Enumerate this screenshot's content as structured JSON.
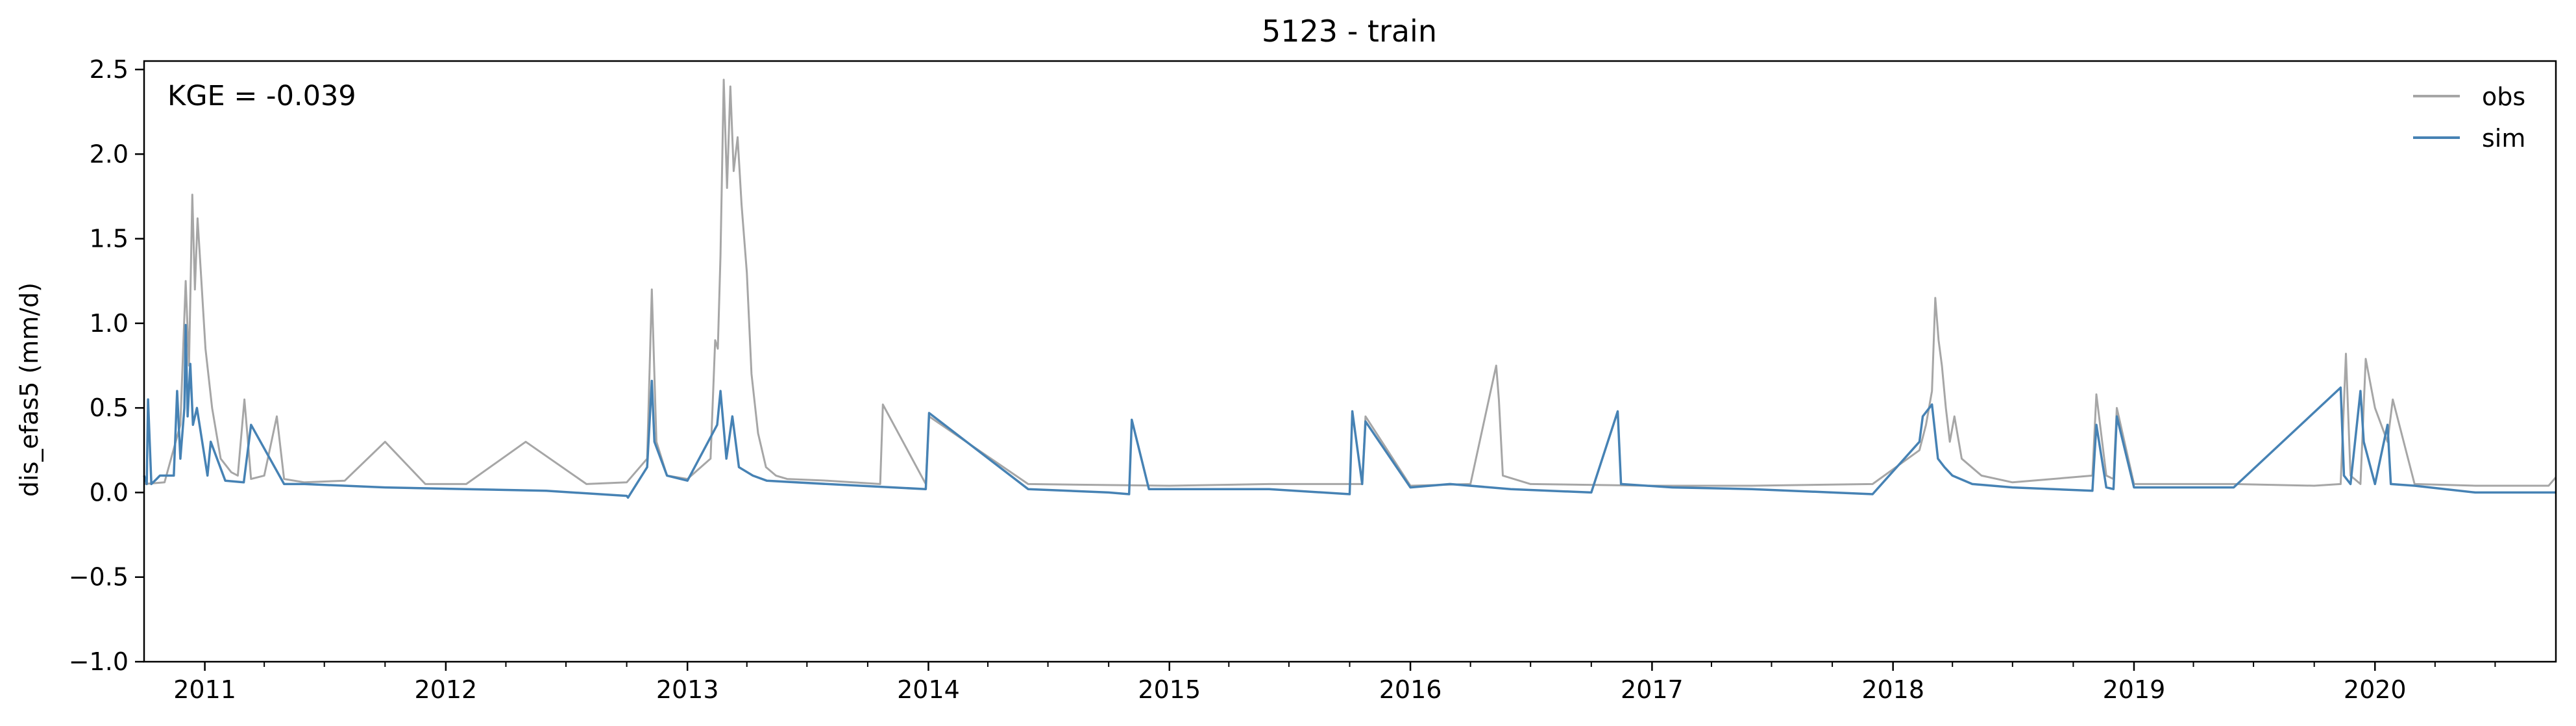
{
  "chart_data": {
    "type": "line",
    "title": "5123 - train",
    "xlabel": "",
    "ylabel": "dis_efas5 (mm/d)",
    "annotation": "KGE = -0.039",
    "xlim": [
      "2010-10-01",
      "2020-10-01"
    ],
    "ylim": [
      -1.0,
      2.55
    ],
    "yticks": [
      -1.0,
      -0.5,
      0.0,
      0.5,
      1.0,
      1.5,
      2.0,
      2.5
    ],
    "ytick_labels": [
      "−1.0",
      "−0.5",
      "0.0",
      "0.5",
      "1.0",
      "1.5",
      "2.0",
      "2.5"
    ],
    "xticks": [
      "2011-01-01",
      "2012-01-01",
      "2013-01-01",
      "2014-01-01",
      "2015-01-01",
      "2016-01-01",
      "2017-01-01",
      "2018-01-01",
      "2019-01-01",
      "2020-01-01"
    ],
    "xtick_labels": [
      "2011",
      "2012",
      "2013",
      "2014",
      "2015",
      "2016",
      "2017",
      "2018",
      "2019",
      "2020"
    ],
    "legend_position": "top-right",
    "grid": false,
    "series": [
      {
        "name": "obs",
        "color": "#a6a6a6",
        "x": [
          "2010-10-01",
          "2010-11-01",
          "2010-11-25",
          "2010-12-03",
          "2010-12-08",
          "2010-12-13",
          "2010-12-17",
          "2010-12-21",
          "2010-12-26",
          "2011-01-02",
          "2011-01-12",
          "2011-01-25",
          "2011-02-10",
          "2011-02-20",
          "2011-03-02",
          "2011-03-12",
          "2011-04-01",
          "2011-04-20",
          "2011-05-01",
          "2011-06-01",
          "2011-08-01",
          "2011-10-01",
          "2011-12-01",
          "2012-02-01",
          "2012-05-01",
          "2012-08-01",
          "2012-10-01",
          "2012-11-01",
          "2012-11-08",
          "2012-11-15",
          "2012-12-01",
          "2013-01-01",
          "2013-02-05",
          "2013-02-12",
          "2013-02-16",
          "2013-02-20",
          "2013-02-25",
          "2013-03-02",
          "2013-03-07",
          "2013-03-12",
          "2013-03-18",
          "2013-03-24",
          "2013-04-01",
          "2013-04-08",
          "2013-04-18",
          "2013-04-30",
          "2013-05-15",
          "2013-06-01",
          "2013-08-01",
          "2013-10-20",
          "2013-10-24",
          "2013-12-28",
          "2014-01-02",
          "2014-06-01",
          "2015-01-01",
          "2015-06-01",
          "2015-10-20",
          "2015-10-25",
          "2016-01-01",
          "2016-04-01",
          "2016-05-10",
          "2016-05-14",
          "2016-05-20",
          "2016-07-01",
          "2017-01-01",
          "2017-06-01",
          "2017-12-01",
          "2018-02-10",
          "2018-02-20",
          "2018-03-01",
          "2018-03-06",
          "2018-03-11",
          "2018-03-16",
          "2018-03-22",
          "2018-03-28",
          "2018-04-04",
          "2018-04-15",
          "2018-05-15",
          "2018-07-01",
          "2018-10-30",
          "2018-11-05",
          "2018-11-20",
          "2018-12-01",
          "2018-12-06",
          "2019-01-01",
          "2019-06-01",
          "2019-10-01",
          "2019-11-10",
          "2019-11-18",
          "2019-11-25",
          "2019-12-10",
          "2019-12-18",
          "2020-01-01",
          "2020-01-20",
          "2020-01-28",
          "2020-03-01",
          "2020-06-01",
          "2020-09-20",
          "2020-10-01"
        ],
        "y": [
          0.05,
          0.06,
          0.4,
          1.25,
          0.75,
          1.76,
          1.2,
          1.62,
          1.3,
          0.85,
          0.5,
          0.2,
          0.12,
          0.1,
          0.55,
          0.08,
          0.1,
          0.45,
          0.08,
          0.06,
          0.07,
          0.3,
          0.05,
          0.05,
          0.3,
          0.05,
          0.06,
          0.2,
          1.2,
          0.3,
          0.1,
          0.08,
          0.2,
          0.9,
          0.85,
          1.4,
          2.44,
          1.8,
          2.4,
          1.9,
          2.1,
          1.7,
          1.3,
          0.7,
          0.35,
          0.15,
          0.1,
          0.08,
          0.07,
          0.05,
          0.52,
          0.05,
          0.45,
          0.05,
          0.04,
          0.05,
          0.05,
          0.45,
          0.04,
          0.05,
          0.75,
          0.55,
          0.1,
          0.05,
          0.04,
          0.04,
          0.05,
          0.25,
          0.4,
          0.6,
          1.15,
          0.9,
          0.75,
          0.5,
          0.3,
          0.45,
          0.2,
          0.1,
          0.06,
          0.1,
          0.58,
          0.1,
          0.08,
          0.5,
          0.05,
          0.05,
          0.04,
          0.05,
          0.82,
          0.1,
          0.05,
          0.79,
          0.5,
          0.3,
          0.55,
          0.05,
          0.04,
          0.04,
          0.09
        ]
      },
      {
        "name": "sim",
        "color": "#4682b4",
        "x": [
          "2010-10-01",
          "2010-10-05",
          "2010-10-07",
          "2010-10-12",
          "2010-10-20",
          "2010-10-25",
          "2010-11-15",
          "2010-11-20",
          "2010-11-25",
          "2010-12-01",
          "2010-12-03",
          "2010-12-06",
          "2010-12-10",
          "2010-12-14",
          "2010-12-20",
          "2011-01-05",
          "2011-01-10",
          "2011-02-01",
          "2011-03-01",
          "2011-03-12",
          "2011-05-01",
          "2011-06-01",
          "2011-10-01",
          "2012-02-01",
          "2012-06-01",
          "2012-10-01",
          "2012-10-03",
          "2012-11-01",
          "2012-11-08",
          "2012-11-12",
          "2012-12-01",
          "2013-01-01",
          "2013-02-15",
          "2013-02-20",
          "2013-03-01",
          "2013-03-10",
          "2013-03-20",
          "2013-04-10",
          "2013-05-01",
          "2013-08-01",
          "2013-12-28",
          "2014-01-02",
          "2014-06-01",
          "2014-10-01",
          "2014-11-01",
          "2014-11-05",
          "2014-12-01",
          "2015-06-01",
          "2015-10-01",
          "2015-10-05",
          "2015-10-20",
          "2015-10-25",
          "2016-01-01",
          "2016-03-01",
          "2016-06-01",
          "2016-10-01",
          "2016-11-10",
          "2016-11-15",
          "2017-02-01",
          "2017-06-01",
          "2017-10-01",
          "2017-12-01",
          "2018-02-10",
          "2018-02-15",
          "2018-03-01",
          "2018-03-10",
          "2018-03-20",
          "2018-04-01",
          "2018-05-01",
          "2018-07-01",
          "2018-10-30",
          "2018-11-05",
          "2018-11-20",
          "2018-12-01",
          "2018-12-06",
          "2019-01-01",
          "2019-06-01",
          "2019-11-10",
          "2019-11-15",
          "2019-11-25",
          "2019-12-10",
          "2019-12-15",
          "2020-01-01",
          "2020-01-20",
          "2020-01-25",
          "2020-03-01",
          "2020-06-01",
          "2020-10-01"
        ],
        "y": [
          0.1,
          0.05,
          0.55,
          0.05,
          0.08,
          0.1,
          0.1,
          0.6,
          0.2,
          0.5,
          0.99,
          0.45,
          0.76,
          0.4,
          0.5,
          0.1,
          0.3,
          0.07,
          0.06,
          0.4,
          0.05,
          0.05,
          0.03,
          0.02,
          0.01,
          -0.02,
          -0.03,
          0.15,
          0.66,
          0.3,
          0.1,
          0.07,
          0.4,
          0.6,
          0.2,
          0.45,
          0.15,
          0.1,
          0.07,
          0.05,
          0.02,
          0.47,
          0.02,
          0.0,
          -0.01,
          0.43,
          0.02,
          0.02,
          -0.01,
          0.48,
          0.05,
          0.42,
          0.03,
          0.05,
          0.02,
          0.0,
          0.48,
          0.05,
          0.03,
          0.02,
          0.0,
          -0.01,
          0.3,
          0.45,
          0.52,
          0.2,
          0.15,
          0.1,
          0.05,
          0.03,
          0.01,
          0.4,
          0.03,
          0.02,
          0.45,
          0.03,
          0.03,
          0.62,
          0.1,
          0.05,
          0.6,
          0.3,
          0.05,
          0.4,
          0.05,
          0.04,
          0.0,
          0.0
        ]
      }
    ]
  }
}
